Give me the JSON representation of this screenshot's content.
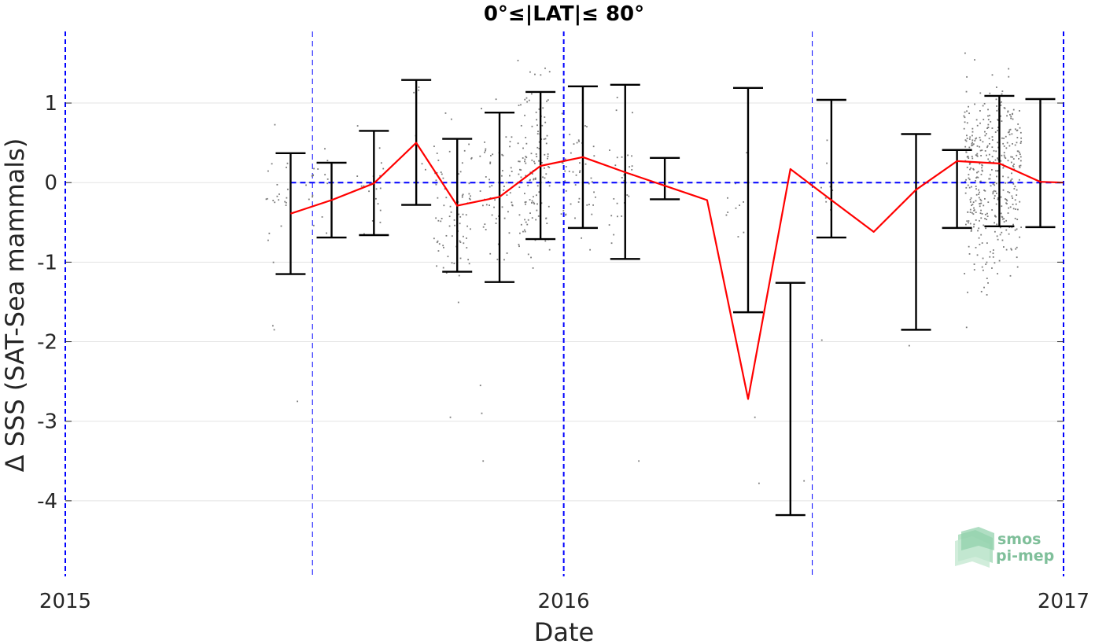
{
  "chart_data": {
    "type": "scatter",
    "title": "0°≤|LAT|≤ 80°",
    "xlabel": "Date",
    "ylabel": "Δ SSS (SAT-Sea mammals)",
    "xlim": [
      "2015-01-01",
      "2017-01-01"
    ],
    "ylim": [
      -4.95,
      1.9
    ],
    "xticks": [
      "2015",
      "2016",
      "2017"
    ],
    "yticks": [
      1,
      0,
      -1,
      -2,
      -3,
      -4
    ],
    "grid": true,
    "year_lines": [
      "2015-01-01",
      "2016-01-01",
      "2017-01-01"
    ],
    "half_year_lines": [
      "2015-07-01",
      "2016-07-01"
    ],
    "zero_line": {
      "value": 0,
      "from": "2015-06-15",
      "to": "2017-01-01"
    },
    "monthly": {
      "name": "",
      "color": "#ff0000",
      "dates": [
        "2015-06-15",
        "2015-07-15",
        "2015-08-15",
        "2015-09-15",
        "2015-10-15",
        "2015-11-15",
        "2015-12-15",
        "2016-01-15",
        "2016-02-15",
        "2016-04-15",
        "2016-05-15",
        "2016-06-15",
        "2016-07-15",
        "2016-08-15",
        "2016-09-15",
        "2016-10-15",
        "2016-11-15",
        "2016-12-15",
        "2017-01-01"
      ],
      "values": [
        -0.39,
        -0.22,
        -0.01,
        0.5,
        -0.29,
        -0.18,
        0.21,
        0.32,
        0.13,
        -0.22,
        -2.72,
        0.17,
        -0.22,
        -0.62,
        -0.09,
        0.27,
        0.24,
        0.01,
        null
      ]
    },
    "error_bars": [
      {
        "date": "2015-06-15",
        "low": -1.15,
        "high": 0.37
      },
      {
        "date": "2015-07-15",
        "low": -0.69,
        "high": 0.25
      },
      {
        "date": "2015-08-15",
        "low": -0.66,
        "high": 0.65
      },
      {
        "date": "2015-09-15",
        "low": -0.28,
        "high": 1.29
      },
      {
        "date": "2015-10-15",
        "low": -1.12,
        "high": 0.55
      },
      {
        "date": "2015-11-15",
        "low": -1.25,
        "high": 0.88
      },
      {
        "date": "2015-12-15",
        "low": -0.71,
        "high": 1.14
      },
      {
        "date": "2016-01-15",
        "low": -0.57,
        "high": 1.21
      },
      {
        "date": "2016-02-15",
        "low": -0.96,
        "high": 1.23
      },
      {
        "date": "2016-03-15",
        "low": -0.21,
        "high": 0.31
      },
      {
        "date": "2016-05-15",
        "low": -1.63,
        "high": 1.19
      },
      {
        "date": "2016-06-15",
        "low": -4.18,
        "high": -1.26
      },
      {
        "date": "2016-07-15",
        "low": -0.69,
        "high": 1.04
      },
      {
        "date": "2016-09-15",
        "low": -1.85,
        "high": 0.61
      },
      {
        "date": "2016-10-15",
        "low": -0.57,
        "high": 0.41
      },
      {
        "date": "2016-11-15",
        "low": -0.55,
        "high": 1.09
      },
      {
        "date": "2016-12-15",
        "low": -0.56,
        "high": 1.05
      }
    ],
    "point_clouds": [
      {
        "date": "2015-06-05",
        "days": 16,
        "count": 22,
        "low": -1.4,
        "high": 1.15
      },
      {
        "date": "2015-07-05",
        "days": 18,
        "count": 18,
        "low": -0.9,
        "high": 0.8
      },
      {
        "date": "2015-08-12",
        "days": 20,
        "count": 20,
        "low": -1.0,
        "high": 1.05
      },
      {
        "date": "2015-09-18",
        "days": 10,
        "count": 6,
        "low": -0.2,
        "high": 1.8
      },
      {
        "date": "2015-10-12",
        "days": 28,
        "count": 80,
        "low": -1.8,
        "high": 1.1
      },
      {
        "date": "2015-11-12",
        "days": 26,
        "count": 60,
        "low": -1.5,
        "high": 1.45
      },
      {
        "date": "2015-12-10",
        "days": 24,
        "count": 130,
        "low": -1.4,
        "high": 1.75
      },
      {
        "date": "2016-01-12",
        "days": 26,
        "count": 50,
        "low": -1.2,
        "high": 1.3
      },
      {
        "date": "2016-02-12",
        "days": 18,
        "count": 28,
        "low": -1.3,
        "high": 1.55
      },
      {
        "date": "2016-05-08",
        "days": 18,
        "count": 10,
        "low": -1.7,
        "high": 1.3
      },
      {
        "date": "2016-07-10",
        "days": 12,
        "count": 8,
        "low": -1.1,
        "high": 0.9
      },
      {
        "date": "2016-11-10",
        "days": 42,
        "count": 420,
        "low": -1.7,
        "high": 1.75
      }
    ],
    "outliers": [
      {
        "date": "2015-06-02",
        "value": -1.8
      },
      {
        "date": "2015-06-03",
        "value": -1.85
      },
      {
        "date": "2015-06-20",
        "value": -2.75
      },
      {
        "date": "2015-10-10",
        "value": -2.95
      },
      {
        "date": "2015-11-01",
        "value": -2.55
      },
      {
        "date": "2015-11-02",
        "value": -2.9
      },
      {
        "date": "2015-11-03",
        "value": -3.5
      },
      {
        "date": "2016-02-25",
        "value": -3.5
      },
      {
        "date": "2016-05-20",
        "value": -2.95
      },
      {
        "date": "2016-05-23",
        "value": -3.78
      },
      {
        "date": "2016-07-08",
        "value": -1.98
      },
      {
        "date": "2016-06-25",
        "value": -3.75
      },
      {
        "date": "2016-09-10",
        "value": -2.05
      },
      {
        "date": "2016-10-22",
        "value": -1.82
      }
    ],
    "colors": {
      "year_line": "#0000ff",
      "zero_line": "#0000ff",
      "grid": "#e3e3e3",
      "error_bar": "#000000",
      "points": "#7a7a7a",
      "mean_line": "#ff0000"
    }
  },
  "logo": {
    "line1": "smos",
    "line2": "pi-mep"
  }
}
